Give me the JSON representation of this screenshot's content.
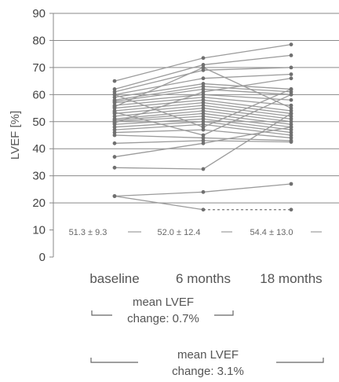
{
  "chart_data": {
    "type": "line",
    "ylabel": "LVEF [%]",
    "ylim": [
      0,
      90
    ],
    "yticks": [
      0,
      10,
      20,
      30,
      40,
      50,
      60,
      70,
      80,
      90
    ],
    "categories": [
      "baseline",
      "6 months",
      "18 months"
    ],
    "summary_labels": [
      "51.3 ± 9.3",
      "52.0 ± 12.4",
      "54.4 ± 13.0"
    ],
    "series": [
      {
        "values": [
          65,
          73.5,
          78.5
        ]
      },
      {
        "values": [
          62,
          71,
          74.5
        ]
      },
      {
        "values": [
          61,
          69,
          70
        ]
      },
      {
        "values": [
          60,
          66,
          67.5
        ]
      },
      {
        "values": [
          59,
          64,
          62
        ]
      },
      {
        "values": [
          58,
          63,
          61
        ]
      },
      {
        "values": [
          57.5,
          62,
          60
        ]
      },
      {
        "values": [
          57,
          60,
          58
        ]
      },
      {
        "values": [
          56,
          59,
          56
        ]
      },
      {
        "values": [
          55,
          58,
          54
        ]
      },
      {
        "values": [
          54,
          57,
          53
        ]
      },
      {
        "values": [
          53,
          56,
          52
        ]
      },
      {
        "values": [
          52,
          55,
          51
        ]
      },
      {
        "values": [
          51,
          54,
          50
        ]
      },
      {
        "values": [
          50.5,
          53,
          49
        ]
      },
      {
        "values": [
          50,
          52,
          48
        ]
      },
      {
        "values": [
          49,
          51,
          47
        ]
      },
      {
        "values": [
          48,
          50,
          46
        ]
      },
      {
        "values": [
          47,
          49,
          45
        ]
      },
      {
        "values": [
          46,
          47,
          44
        ]
      },
      {
        "values": [
          45,
          44,
          43
        ]
      },
      {
        "values": [
          42,
          43,
          42.5
        ]
      },
      {
        "values": [
          37,
          42,
          48
        ]
      },
      {
        "values": [
          33,
          32.5,
          53
        ]
      },
      {
        "values": [
          22.5,
          24,
          27
        ]
      },
      {
        "values": [
          22.5,
          17.5,
          17.5
        ],
        "dashed_segment": [
          1,
          2
        ]
      },
      {
        "values": [
          60,
          48,
          62
        ]
      },
      {
        "values": [
          55.5,
          70,
          55
        ]
      },
      {
        "values": [
          49.5,
          61,
          66
        ]
      },
      {
        "values": [
          53.5,
          45,
          60
        ]
      }
    ]
  },
  "annotations": [
    {
      "line1": "mean LVEF",
      "line2": "change: 0.7%"
    },
    {
      "line1": "mean LVEF",
      "line2": "change: 3.1%"
    }
  ]
}
